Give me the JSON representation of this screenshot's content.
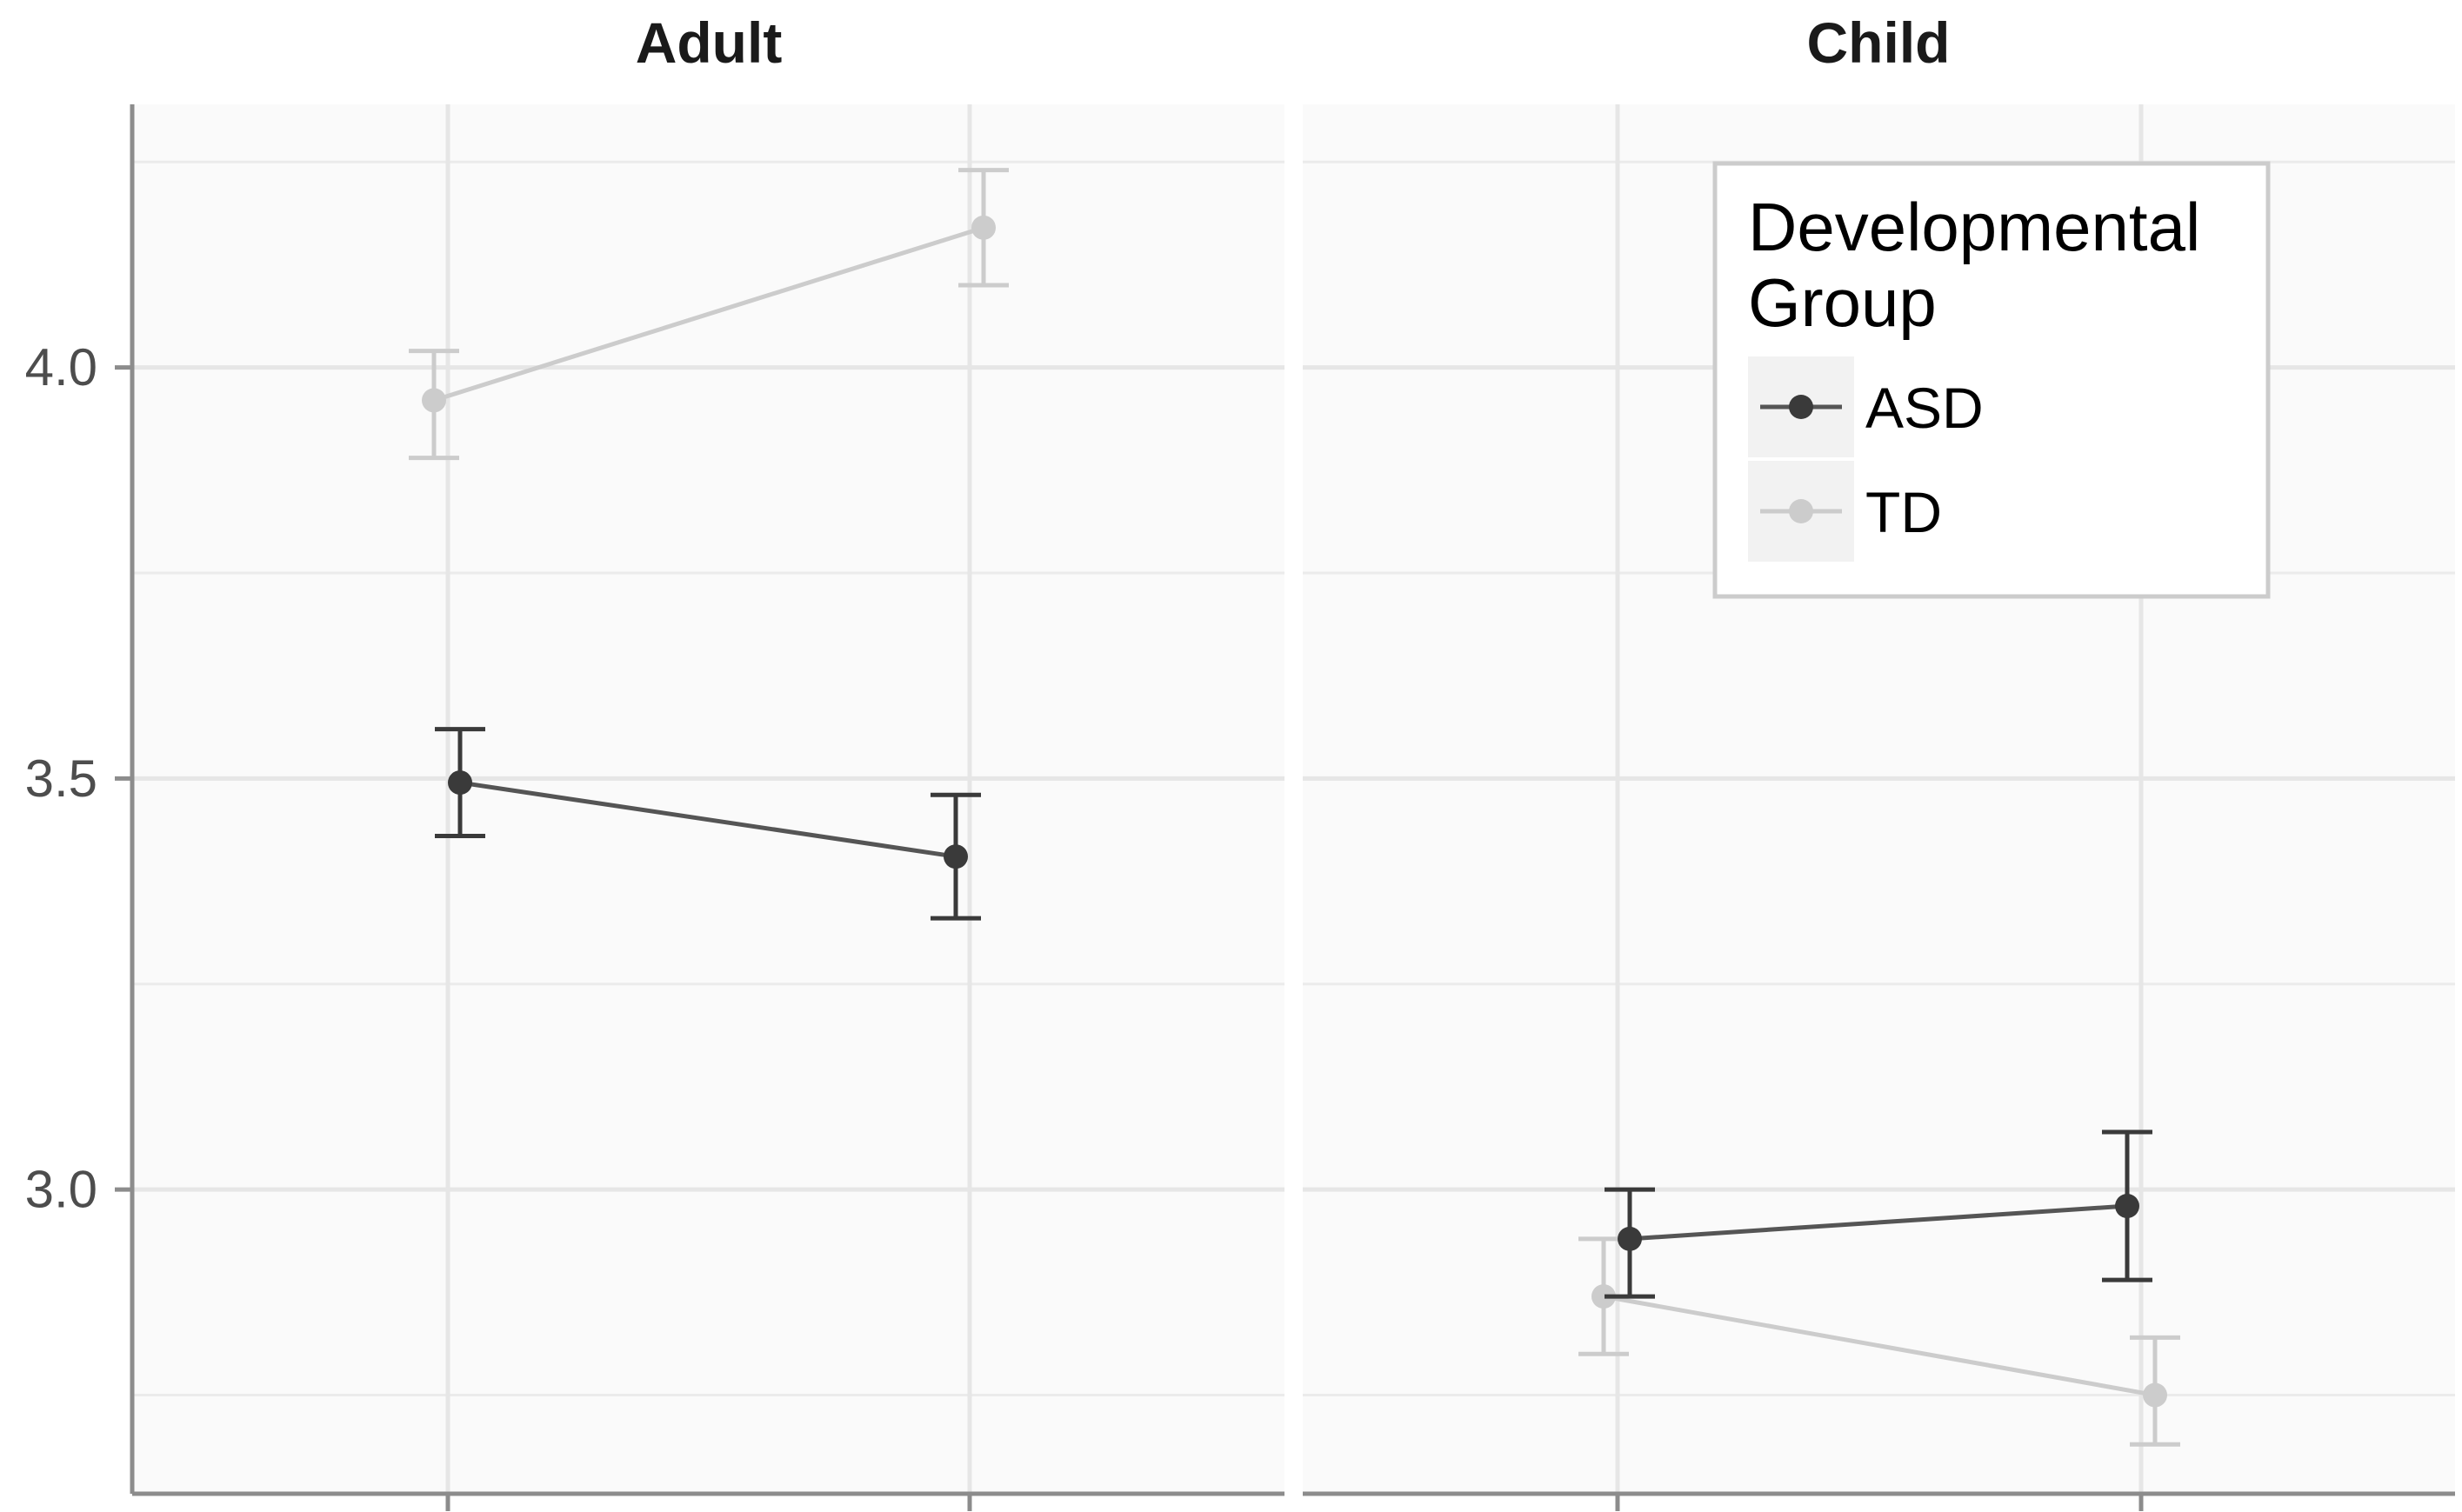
{
  "chart_data": {
    "type": "line",
    "facets": [
      "Adult",
      "Child"
    ],
    "x_groups": 2,
    "ylim": [
      2.63,
      4.32
    ],
    "yticks": [
      3.0,
      3.5,
      4.0
    ],
    "ytick_labels": [
      "3.0",
      "3.5",
      "4.0"
    ],
    "grid": true,
    "legend": {
      "title_lines": [
        "Developmental",
        "Group"
      ],
      "placement": "top-right",
      "items": [
        "ASD",
        "TD"
      ]
    },
    "series": [
      {
        "name": "ASD",
        "color": "#555555",
        "point_color": "#3a3a3a",
        "panels": [
          {
            "facet": "Adult",
            "points": [
              {
                "x": 1,
                "y": 3.495,
                "lo": 3.43,
                "hi": 3.56
              },
              {
                "x": 2,
                "y": 3.405,
                "lo": 3.33,
                "hi": 3.48
              }
            ]
          },
          {
            "facet": "Child",
            "points": [
              {
                "x": 1,
                "y": 2.94,
                "lo": 2.87,
                "hi": 3.0
              },
              {
                "x": 2,
                "y": 2.98,
                "lo": 2.89,
                "hi": 3.07
              }
            ]
          }
        ]
      },
      {
        "name": "TD",
        "color": "#cccccc",
        "point_color": "#cccccc",
        "panels": [
          {
            "facet": "Adult",
            "points": [
              {
                "x": 1,
                "y": 3.96,
                "lo": 3.89,
                "hi": 4.02
              },
              {
                "x": 2,
                "y": 4.17,
                "lo": 4.1,
                "hi": 4.24
              }
            ]
          },
          {
            "facet": "Child",
            "points": [
              {
                "x": 1,
                "y": 2.87,
                "lo": 2.8,
                "hi": 2.94
              },
              {
                "x": 2,
                "y": 2.75,
                "lo": 2.69,
                "hi": 2.82
              }
            ]
          }
        ]
      }
    ]
  }
}
